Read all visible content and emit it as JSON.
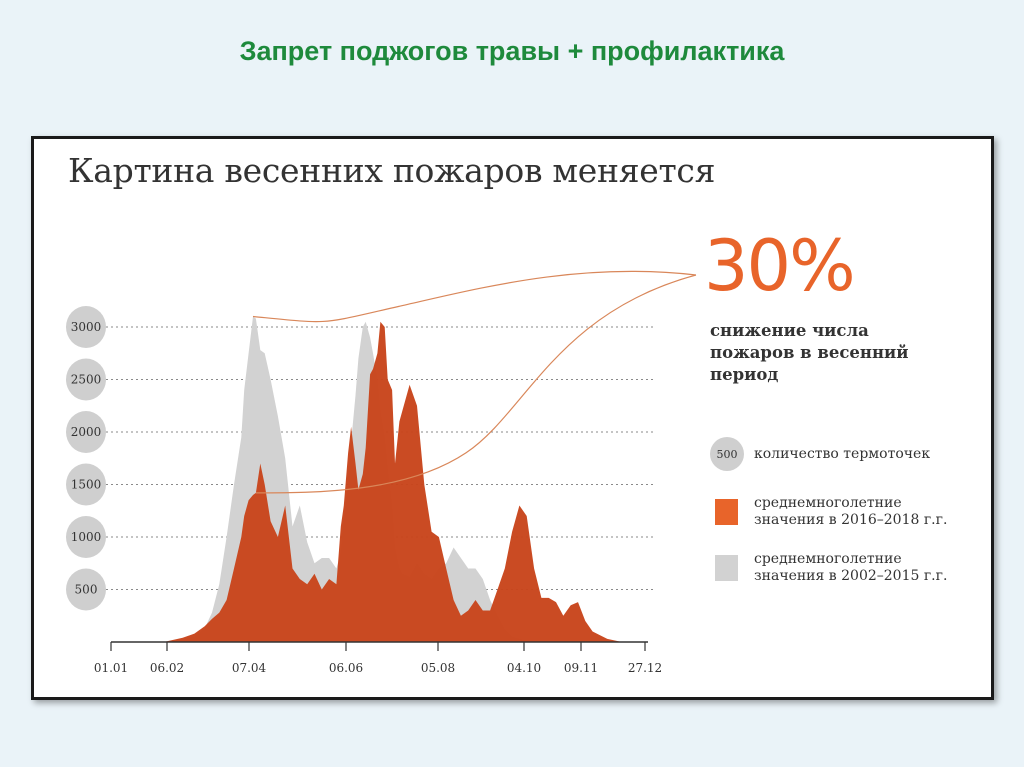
{
  "slide_title": "Запрет поджогов травы + профилактика",
  "chart_data": {
    "type": "area",
    "title": "Картина весенних пожаров меняется",
    "ylabel": "",
    "xlabel": "",
    "y_ticks": [
      500,
      1000,
      1500,
      2000,
      2500,
      3000
    ],
    "ylim": [
      0,
      3100
    ],
    "grid": "horizontal dotted",
    "x_ticks": [
      "01.01",
      "06.02",
      "07.04",
      "06.06",
      "05.08",
      "04.10",
      "09.11",
      "27.12"
    ],
    "x": [
      1,
      20,
      37,
      50,
      58,
      65,
      70,
      75,
      80,
      85,
      90,
      92,
      95,
      98,
      100,
      103,
      106,
      110,
      115,
      120,
      125,
      130,
      135,
      140,
      145,
      150,
      155,
      158,
      160,
      163,
      165,
      168,
      170,
      173,
      175,
      178,
      180,
      183,
      185,
      188,
      190,
      193,
      195,
      198,
      200,
      205,
      210,
      215,
      220,
      225,
      230,
      235,
      240,
      245,
      250,
      255,
      260,
      265,
      270,
      275,
      280,
      285,
      290,
      295,
      300,
      305,
      310,
      315,
      320,
      325,
      330,
      340,
      350,
      361
    ],
    "series": [
      {
        "name": "среднемноголетние значения в 2002–2015 г.г.",
        "color": "#d2d2d2",
        "values": [
          0,
          0,
          0,
          20,
          50,
          130,
          280,
          550,
          1000,
          1500,
          1950,
          2400,
          2750,
          3100,
          3080,
          2780,
          2750,
          2500,
          2150,
          1750,
          1100,
          1300,
          950,
          750,
          800,
          800,
          700,
          850,
          1150,
          1500,
          1900,
          2350,
          2700,
          3000,
          3050,
          2900,
          2750,
          2500,
          2200,
          1950,
          1650,
          1300,
          900,
          700,
          650,
          620,
          750,
          650,
          600,
          700,
          750,
          900,
          800,
          700,
          700,
          600,
          400,
          250,
          120,
          50,
          30,
          10,
          0,
          0,
          0,
          0,
          0,
          0,
          0,
          0,
          0,
          0,
          0,
          0
        ]
      },
      {
        "name": "среднемноголетние значения в 2016–2018 г.г.",
        "color": "#c8451c",
        "values": [
          0,
          0,
          0,
          40,
          80,
          150,
          220,
          280,
          400,
          700,
          1000,
          1200,
          1350,
          1400,
          1420,
          1700,
          1500,
          1150,
          1000,
          1300,
          700,
          600,
          550,
          650,
          500,
          600,
          550,
          1100,
          1300,
          1800,
          2050,
          1700,
          1450,
          1600,
          1850,
          2550,
          2600,
          2750,
          3050,
          3000,
          2500,
          2400,
          1700,
          2100,
          2200,
          2450,
          2250,
          1500,
          1050,
          1000,
          700,
          400,
          250,
          300,
          400,
          300,
          300,
          500,
          700,
          1050,
          1300,
          1200,
          700,
          420,
          420,
          380,
          250,
          350,
          380,
          200,
          100,
          30,
          0,
          0
        ]
      }
    ],
    "annotation": {
      "value": "30%",
      "caption": "снижение числа пожаров в весенний период"
    },
    "legend": [
      {
        "marker": "circle",
        "marker_text": "500",
        "label": "количество термоточек"
      },
      {
        "marker": "swatch",
        "color": "#e8642a",
        "label": "среднемноголетние значения в 2016–2018 г.г."
      },
      {
        "marker": "swatch",
        "color": "#d2d2d2",
        "label": "среднемноголетние значения в 2002–2015 г.г."
      }
    ],
    "legend_position": "right"
  }
}
